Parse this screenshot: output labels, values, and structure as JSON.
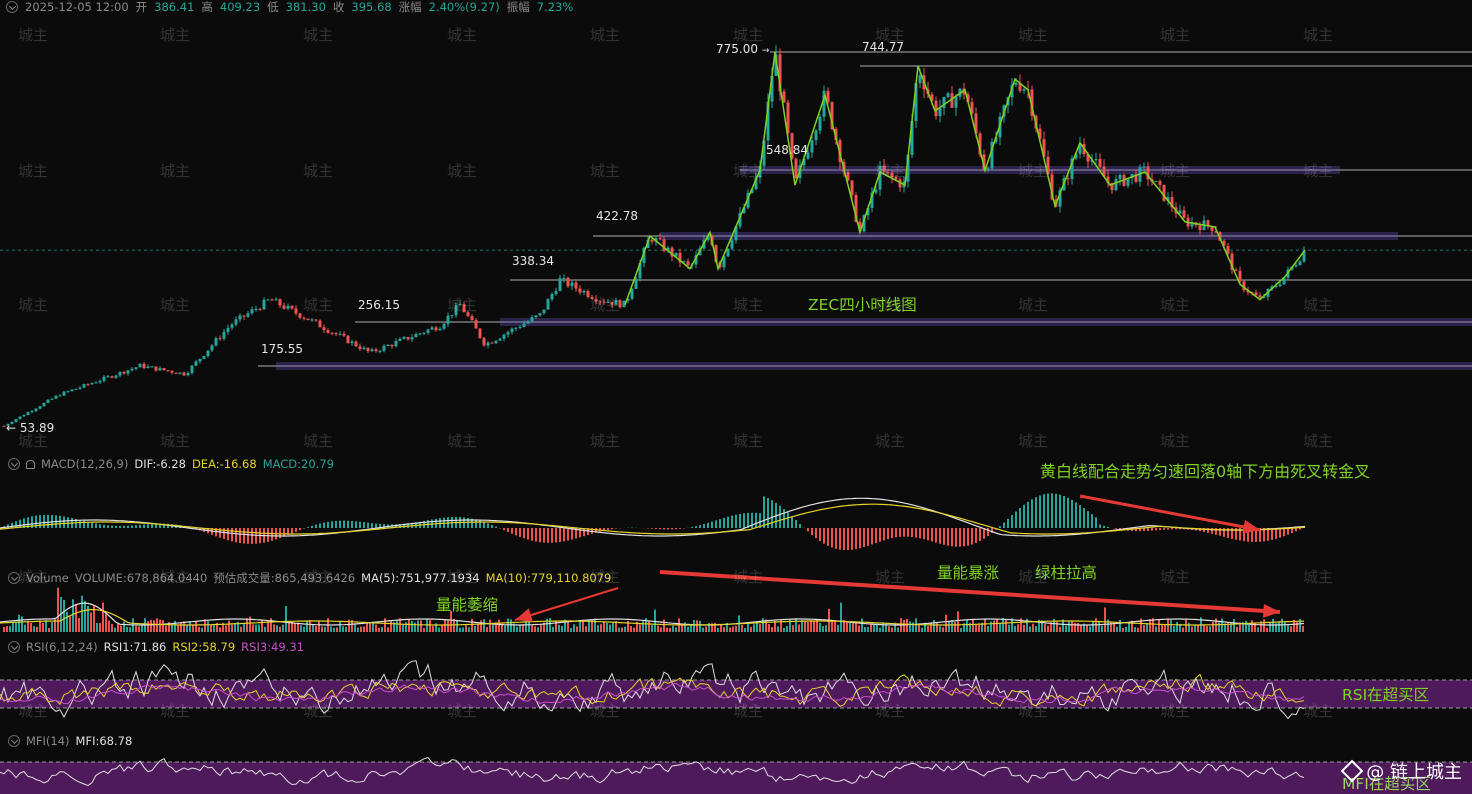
{
  "header": {
    "datetime": "2025-12-05 12:00",
    "open_label": "开",
    "open": "386.41",
    "high_label": "高",
    "high": "409.23",
    "low_label": "低",
    "low": "381.30",
    "close_label": "收",
    "close": "395.68",
    "change_label": "涨幅",
    "change": "2.40%(9.27)",
    "amp_label": "振幅",
    "amp": "7.23%"
  },
  "levels": [
    "775.00",
    "744.77",
    "548.84",
    "422.78",
    "338.34",
    "256.15",
    "175.55",
    "53.89"
  ],
  "annotations": {
    "title": "ZEC四小时线图",
    "macd_note": "黄白线配合走势匀速回落0轴下方由死叉转金叉",
    "vol_surge": "量能暴涨",
    "green_bar": "绿柱拉高",
    "vol_shrink": "量能萎缩",
    "rsi_note": "RSI在超买区",
    "mfi_note": "MFI在超买区"
  },
  "indicators": {
    "macd": {
      "name": "MACD(12,26,9)",
      "dif": "DIF:-6.28",
      "dea": "DEA:-16.68",
      "macd": "MACD:20.79"
    },
    "volume": {
      "name": "Volume",
      "volume": "VOLUME:678,864.0440",
      "est": "预估成交量:865,493.6426",
      "ma5": "MA(5):751,977.1934",
      "ma10": "MA(10):779,110.8079"
    },
    "rsi": {
      "name": "RSI(6,12,24)",
      "rsi1": "RSI1:71.86",
      "rsi2": "RSI2:58.79",
      "rsi3": "RSI3:49.31"
    },
    "mfi": {
      "name": "MFI(14)",
      "mfi": "MFI:68.78"
    }
  },
  "watermark": "城主",
  "logo": "@ 链上城主",
  "colors": {
    "up": "#26a69a",
    "down": "#ef5350",
    "dif": "#e0e0e0",
    "dea": "#e6d32a",
    "rsi3": "#c94fc9",
    "band": "#5b1d6b",
    "level": "#d8d8d8",
    "level_band": "#6a4fc4",
    "arrow": "#e53935",
    "anno": "#7ed321"
  },
  "chart_data": {
    "type": "candlestick",
    "title": "ZEC四小时线图",
    "ylim": [
      40,
      800
    ],
    "pivots": [
      {
        "x": 0,
        "y": 53.89
      },
      {
        "x": 60,
        "y": 120
      },
      {
        "x": 140,
        "y": 176
      },
      {
        "x": 185,
        "y": 160
      },
      {
        "x": 230,
        "y": 250
      },
      {
        "x": 270,
        "y": 300
      },
      {
        "x": 330,
        "y": 240
      },
      {
        "x": 370,
        "y": 200
      },
      {
        "x": 440,
        "y": 250
      },
      {
        "x": 460,
        "y": 290
      },
      {
        "x": 485,
        "y": 215
      },
      {
        "x": 540,
        "y": 270
      },
      {
        "x": 560,
        "y": 338.34
      },
      {
        "x": 600,
        "y": 300
      },
      {
        "x": 625,
        "y": 290
      },
      {
        "x": 650,
        "y": 422.78
      },
      {
        "x": 690,
        "y": 360
      },
      {
        "x": 710,
        "y": 430
      },
      {
        "x": 718,
        "y": 360
      },
      {
        "x": 760,
        "y": 548.84
      },
      {
        "x": 775,
        "y": 775.0
      },
      {
        "x": 795,
        "y": 520
      },
      {
        "x": 825,
        "y": 690
      },
      {
        "x": 860,
        "y": 430
      },
      {
        "x": 880,
        "y": 545
      },
      {
        "x": 905,
        "y": 520
      },
      {
        "x": 918,
        "y": 744.77
      },
      {
        "x": 935,
        "y": 660
      },
      {
        "x": 965,
        "y": 700
      },
      {
        "x": 985,
        "y": 548
      },
      {
        "x": 1015,
        "y": 720
      },
      {
        "x": 1028,
        "y": 700
      },
      {
        "x": 1055,
        "y": 480
      },
      {
        "x": 1080,
        "y": 600
      },
      {
        "x": 1110,
        "y": 520
      },
      {
        "x": 1145,
        "y": 545
      },
      {
        "x": 1185,
        "y": 450
      },
      {
        "x": 1215,
        "y": 440
      },
      {
        "x": 1240,
        "y": 330
      },
      {
        "x": 1260,
        "y": 300
      },
      {
        "x": 1285,
        "y": 345
      },
      {
        "x": 1305,
        "y": 395.68
      }
    ],
    "horizontal_levels": [
      775.0,
      744.77,
      548.84,
      422.78,
      338.34,
      256.15,
      175.55,
      53.89
    ],
    "last_close": 395.68
  }
}
